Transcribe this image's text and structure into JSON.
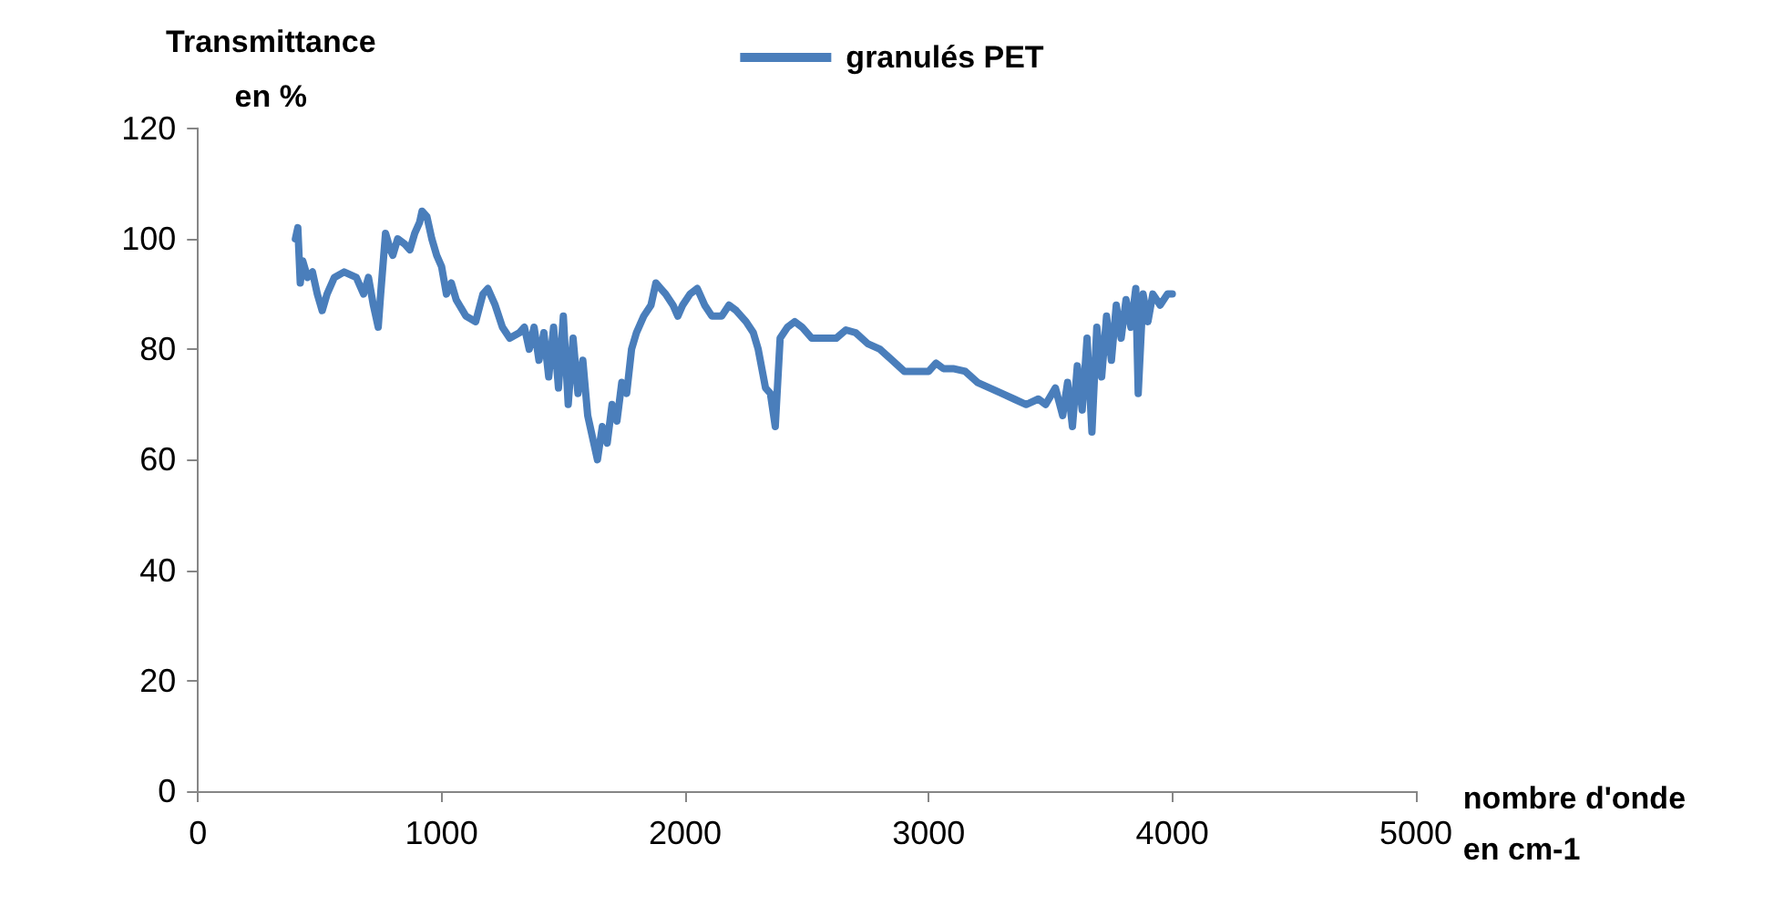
{
  "chart_data": {
    "type": "line",
    "xlabel": "nombre d'onde\nen cm-1",
    "ylabel": "Transmittance\nen %",
    "xlim": [
      0,
      5000
    ],
    "xticks": [
      0,
      1000,
      2000,
      3000,
      4000,
      5000
    ],
    "ylim": [
      0,
      120
    ],
    "yticks": [
      0,
      20,
      40,
      60,
      80,
      100,
      120
    ],
    "grid": false,
    "legend": "top",
    "marker": "none",
    "line_style": "solid",
    "series": [
      {
        "name": "granulés PET",
        "color": "#4a7ebb",
        "x": [
          400,
          410,
          420,
          430,
          450,
          470,
          490,
          510,
          530,
          560,
          600,
          650,
          680,
          700,
          720,
          740,
          750,
          770,
          790,
          800,
          820,
          850,
          870,
          890,
          910,
          920,
          940,
          960,
          980,
          1000,
          1020,
          1040,
          1060,
          1100,
          1140,
          1170,
          1190,
          1220,
          1250,
          1280,
          1320,
          1340,
          1360,
          1380,
          1400,
          1420,
          1440,
          1460,
          1480,
          1500,
          1520,
          1540,
          1560,
          1580,
          1600,
          1620,
          1640,
          1660,
          1680,
          1700,
          1720,
          1740,
          1760,
          1780,
          1800,
          1830,
          1860,
          1880,
          1900,
          1920,
          1950,
          1970,
          1990,
          2020,
          2050,
          2080,
          2110,
          2150,
          2180,
          2210,
          2250,
          2280,
          2300,
          2330,
          2350,
          2370,
          2390,
          2420,
          2450,
          2480,
          2520,
          2570,
          2620,
          2660,
          2700,
          2750,
          2800,
          2850,
          2900,
          2950,
          3000,
          3030,
          3060,
          3100,
          3150,
          3200,
          3250,
          3300,
          3350,
          3400,
          3450,
          3480,
          3520,
          3550,
          3570,
          3590,
          3610,
          3630,
          3650,
          3670,
          3690,
          3710,
          3730,
          3750,
          3770,
          3790,
          3810,
          3830,
          3850,
          3860,
          3880,
          3900,
          3920,
          3950,
          3980,
          4000
        ],
        "values": [
          100,
          102,
          92,
          96,
          93,
          94,
          90,
          87,
          90,
          93,
          94,
          93,
          90,
          93,
          88,
          84,
          90,
          101,
          98,
          97,
          100,
          99,
          98,
          101,
          103,
          105,
          104,
          100,
          97,
          95,
          90,
          92,
          89,
          86,
          85,
          90,
          91,
          88,
          84,
          82,
          83,
          84,
          80,
          84,
          78,
          83,
          75,
          84,
          73,
          86,
          70,
          82,
          72,
          78,
          68,
          64,
          60,
          66,
          63,
          70,
          67,
          74,
          72,
          80,
          83,
          86,
          88,
          92,
          91,
          90,
          88,
          86,
          88,
          90,
          91,
          88,
          86,
          86,
          88,
          87,
          85,
          83,
          80,
          73,
          72,
          66,
          82,
          84,
          85,
          84,
          82,
          82,
          82,
          83.5,
          83,
          81,
          80,
          78,
          76,
          76,
          76,
          77.5,
          76.5,
          76.5,
          76,
          74,
          73,
          72,
          71,
          70,
          71,
          70,
          73,
          68,
          74,
          66,
          77,
          69,
          82,
          65,
          84,
          75,
          86,
          78,
          88,
          82,
          89,
          84,
          91,
          72,
          90,
          85,
          90,
          88,
          90,
          90
        ]
      }
    ]
  }
}
